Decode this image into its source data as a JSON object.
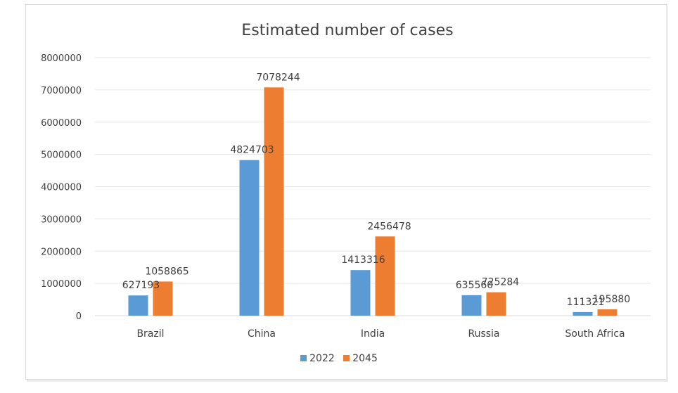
{
  "chart_data": {
    "type": "bar",
    "title": "Estimated number of cases",
    "categories": [
      "Brazil",
      "China",
      "India",
      "Russia",
      "South Africa"
    ],
    "series": [
      {
        "name": "2022",
        "color": "#5b9bd5",
        "values": [
          627193,
          4824703,
          1413316,
          635560,
          111321
        ]
      },
      {
        "name": "2045",
        "color": "#ed7d31",
        "values": [
          1058865,
          7078244,
          2456478,
          725284,
          195880
        ]
      }
    ],
    "ylim": [
      0,
      8000000
    ],
    "yticks": [
      "0",
      "1000000",
      "2000000",
      "3000000",
      "4000000",
      "5000000",
      "6000000",
      "7000000",
      "8000000"
    ],
    "grid": true,
    "legend_position": "bottom",
    "data_labels": true
  }
}
